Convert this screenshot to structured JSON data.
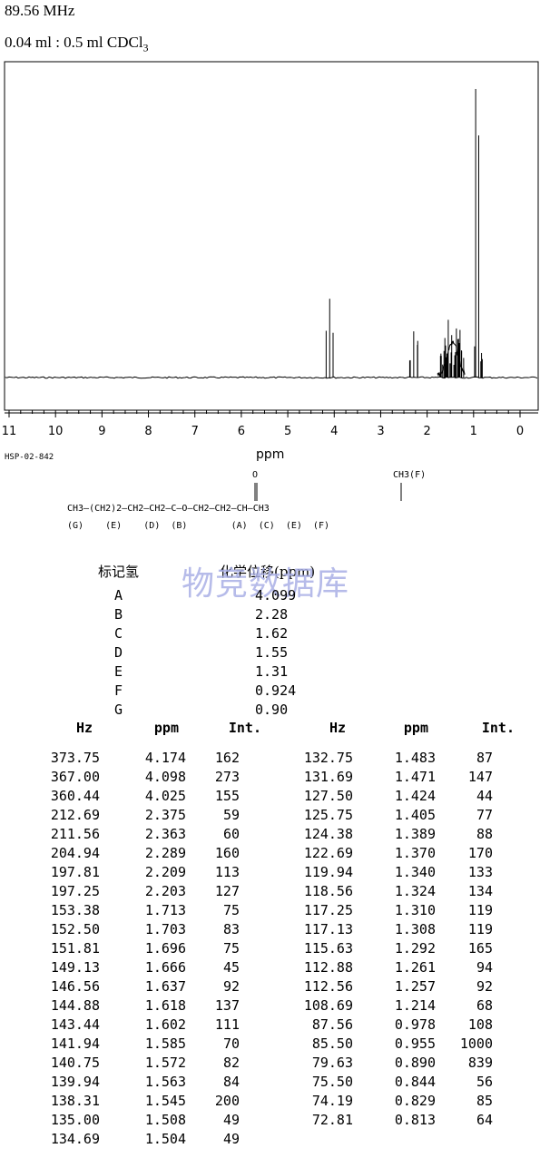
{
  "header": {
    "frequency": "89.56 MHz",
    "solvent_prefix": "0.04 ml : 0.5 ml CDCl",
    "solvent_sub": "3"
  },
  "chart_data": {
    "type": "line",
    "title": "",
    "xlabel": "ppm",
    "ylabel": "",
    "xlim": [
      11,
      0
    ],
    "x_reversed": true,
    "ticks": [
      "11",
      "10",
      "9",
      "8",
      "7",
      "6",
      "5",
      "4",
      "3",
      "2",
      "1",
      "0"
    ],
    "peaks": [
      {
        "ppm": 4.174,
        "int": 162
      },
      {
        "ppm": 4.098,
        "int": 273
      },
      {
        "ppm": 4.025,
        "int": 155
      },
      {
        "ppm": 2.375,
        "int": 59
      },
      {
        "ppm": 2.363,
        "int": 60
      },
      {
        "ppm": 2.289,
        "int": 160
      },
      {
        "ppm": 2.209,
        "int": 113
      },
      {
        "ppm": 2.203,
        "int": 127
      },
      {
        "ppm": 1.713,
        "int": 75
      },
      {
        "ppm": 1.703,
        "int": 83
      },
      {
        "ppm": 1.696,
        "int": 75
      },
      {
        "ppm": 1.666,
        "int": 45
      },
      {
        "ppm": 1.637,
        "int": 92
      },
      {
        "ppm": 1.618,
        "int": 137
      },
      {
        "ppm": 1.602,
        "int": 111
      },
      {
        "ppm": 1.585,
        "int": 70
      },
      {
        "ppm": 1.572,
        "int": 82
      },
      {
        "ppm": 1.563,
        "int": 84
      },
      {
        "ppm": 1.545,
        "int": 200
      },
      {
        "ppm": 1.508,
        "int": 49
      },
      {
        "ppm": 1.504,
        "int": 49
      },
      {
        "ppm": 1.483,
        "int": 87
      },
      {
        "ppm": 1.471,
        "int": 147
      },
      {
        "ppm": 1.424,
        "int": 44
      },
      {
        "ppm": 1.405,
        "int": 77
      },
      {
        "ppm": 1.389,
        "int": 88
      },
      {
        "ppm": 1.37,
        "int": 170
      },
      {
        "ppm": 1.34,
        "int": 133
      },
      {
        "ppm": 1.324,
        "int": 134
      },
      {
        "ppm": 1.31,
        "int": 119
      },
      {
        "ppm": 1.308,
        "int": 119
      },
      {
        "ppm": 1.292,
        "int": 165
      },
      {
        "ppm": 1.261,
        "int": 94
      },
      {
        "ppm": 1.257,
        "int": 92
      },
      {
        "ppm": 1.214,
        "int": 68
      },
      {
        "ppm": 0.978,
        "int": 108
      },
      {
        "ppm": 0.955,
        "int": 1000
      },
      {
        "ppm": 0.89,
        "int": 839
      },
      {
        "ppm": 0.844,
        "int": 56
      },
      {
        "ppm": 0.829,
        "int": 85
      },
      {
        "ppm": 0.813,
        "int": 64
      }
    ]
  },
  "spectrum_code": "HSP-02-842",
  "structure": {
    "top_o": "O",
    "top_ch3": "CH3(F)",
    "bonds_top": "  ‖                |",
    "main_chain": "CH3—(CH2)2—CH2—CH2—C—O—CH2—CH2—CH—CH3",
    "labels": "(G)    (E)    (D)  (B)        (A)  (C)  (E)  (F)"
  },
  "assignments": {
    "col1_header": "标记氢",
    "col2_header": "化学位移(ppm)",
    "rows": [
      {
        "label": "A",
        "value": "4.099"
      },
      {
        "label": "B",
        "value": "2.28"
      },
      {
        "label": "C",
        "value": "1.62"
      },
      {
        "label": "D",
        "value": "1.55"
      },
      {
        "label": "E",
        "value": "1.31"
      },
      {
        "label": "F",
        "value": "0.924"
      },
      {
        "label": "G",
        "value": "0.90"
      }
    ]
  },
  "watermark": "物竞数据库",
  "peak_table": {
    "headers": [
      "Hz",
      "ppm",
      "Int.",
      "Hz",
      "ppm",
      "Int."
    ],
    "left": [
      [
        "373.75",
        "4.174",
        "162"
      ],
      [
        "367.00",
        "4.098",
        "273"
      ],
      [
        "360.44",
        "4.025",
        "155"
      ],
      [
        "212.69",
        "2.375",
        "59"
      ],
      [
        "211.56",
        "2.363",
        "60"
      ],
      [
        "204.94",
        "2.289",
        "160"
      ],
      [
        "197.81",
        "2.209",
        "113"
      ],
      [
        "197.25",
        "2.203",
        "127"
      ],
      [
        "153.38",
        "1.713",
        "75"
      ],
      [
        "152.50",
        "1.703",
        "83"
      ],
      [
        "151.81",
        "1.696",
        "75"
      ],
      [
        "149.13",
        "1.666",
        "45"
      ],
      [
        "146.56",
        "1.637",
        "92"
      ],
      [
        "144.88",
        "1.618",
        "137"
      ],
      [
        "143.44",
        "1.602",
        "111"
      ],
      [
        "141.94",
        "1.585",
        "70"
      ],
      [
        "140.75",
        "1.572",
        "82"
      ],
      [
        "139.94",
        "1.563",
        "84"
      ],
      [
        "138.31",
        "1.545",
        "200"
      ],
      [
        "135.00",
        "1.508",
        "49"
      ],
      [
        "134.69",
        "1.504",
        "49"
      ]
    ],
    "right": [
      [
        "132.75",
        "1.483",
        "87"
      ],
      [
        "131.69",
        "1.471",
        "147"
      ],
      [
        "127.50",
        "1.424",
        "44"
      ],
      [
        "125.75",
        "1.405",
        "77"
      ],
      [
        "124.38",
        "1.389",
        "88"
      ],
      [
        "122.69",
        "1.370",
        "170"
      ],
      [
        "119.94",
        "1.340",
        "133"
      ],
      [
        "118.56",
        "1.324",
        "134"
      ],
      [
        "117.25",
        "1.310",
        "119"
      ],
      [
        "117.13",
        "1.308",
        "119"
      ],
      [
        "115.63",
        "1.292",
        "165"
      ],
      [
        "112.88",
        "1.261",
        "94"
      ],
      [
        "112.56",
        "1.257",
        "92"
      ],
      [
        "108.69",
        "1.214",
        "68"
      ],
      [
        "87.56",
        "0.978",
        "108"
      ],
      [
        "85.50",
        "0.955",
        "1000"
      ],
      [
        "79.63",
        "0.890",
        "839"
      ],
      [
        "75.50",
        "0.844",
        "56"
      ],
      [
        "74.19",
        "0.829",
        "85"
      ],
      [
        "72.81",
        "0.813",
        "64"
      ]
    ]
  }
}
